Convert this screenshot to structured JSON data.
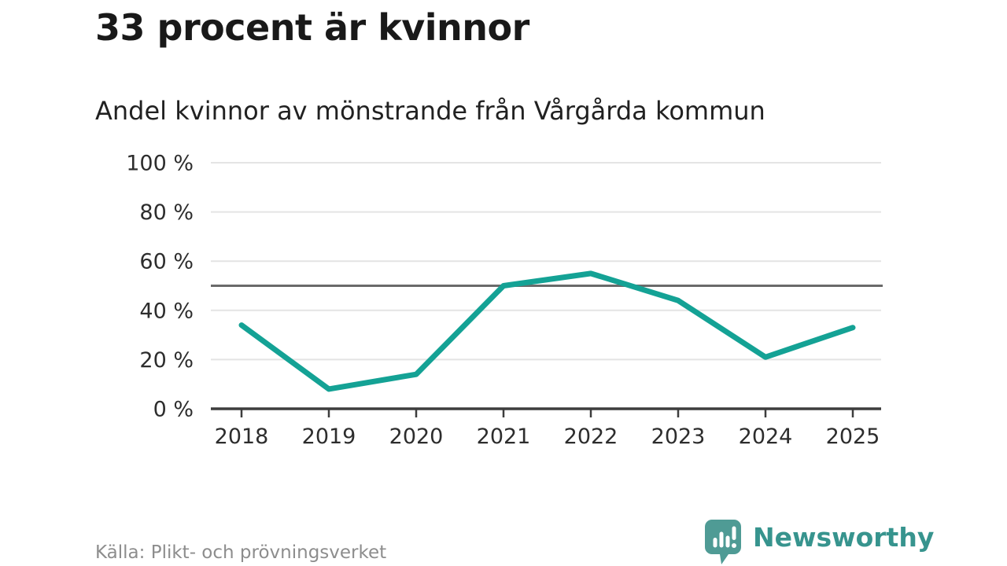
{
  "header": {
    "title": "33 procent är kvinnor",
    "subtitle": "Andel kvinnor av mönstrande från Vårgårda kommun"
  },
  "footer": {
    "source": "Källa: Plikt- och prövningsverket",
    "brand": "Newsworthy",
    "logo_icon": "newsworthy-speech-bubble-bar-chart-icon"
  },
  "colors": {
    "series_teal": "#14a295",
    "reference_line_gray": "#6a6a6a",
    "gridline_gray": "#e4e4e4",
    "axis_dark": "#3d3d3d",
    "axis_label": "#2d2d2d",
    "title_text": "#191919",
    "source_text": "#8d8d8d",
    "brand_icon_teal": "#4f9b95",
    "brand_text_teal": "#37948e"
  },
  "chart_data": {
    "type": "line",
    "title": "33 procent är kvinnor",
    "subtitle": "Andel kvinnor av mönstrande från Vårgårda kommun",
    "x": [
      "2018",
      "2019",
      "2020",
      "2021",
      "2022",
      "2023",
      "2024",
      "2025"
    ],
    "series": [
      {
        "name": "Andel kvinnor av mönstrande",
        "color": "#14a295",
        "values": [
          34,
          8,
          14,
          50,
          55,
          44,
          21,
          33
        ]
      }
    ],
    "reference_line": 50,
    "y_tick_values": [
      0,
      20,
      40,
      60,
      80,
      100
    ],
    "y_tick_labels": [
      "0 %",
      "20 %",
      "40 %",
      "60 %",
      "80 %",
      "100 %"
    ],
    "ylim": [
      0,
      100
    ],
    "grid": true,
    "legend": "none",
    "xlabel": "",
    "ylabel": ""
  }
}
